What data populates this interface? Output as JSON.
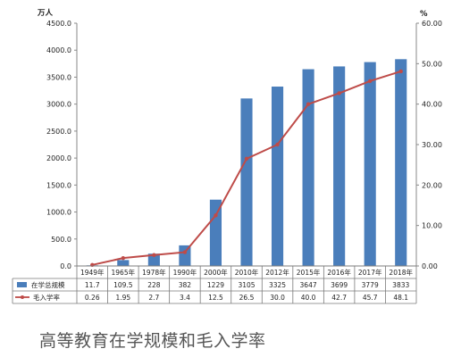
{
  "caption": "高等教育在学规模和毛入学率",
  "chart_data": {
    "type": "bar",
    "categories": [
      "1949年",
      "1965年",
      "1978年",
      "1990年",
      "2000年",
      "2010年",
      "2012年",
      "2015年",
      "2016年",
      "2017年",
      "2018年"
    ],
    "series": [
      {
        "name": "在学总规模",
        "type": "bar",
        "axis": "left",
        "color": "#4a7ebb",
        "values": [
          11.7,
          109.5,
          228,
          382,
          1229,
          3105,
          3325,
          3647,
          3699,
          3779,
          3833
        ],
        "labels": [
          "11.7",
          "109.5",
          "228",
          "382",
          "1229",
          "3105",
          "3325",
          "3647",
          "3699",
          "3779",
          "3833"
        ]
      },
      {
        "name": "毛入学率",
        "type": "line",
        "axis": "right",
        "color": "#be4b48",
        "values": [
          0.26,
          1.95,
          2.7,
          3.4,
          12.5,
          26.5,
          30.0,
          40.0,
          42.7,
          45.7,
          48.1
        ],
        "labels": [
          "0.26",
          "1.95",
          "2.7",
          "3.4",
          "12.5",
          "26.5",
          "30.0",
          "40.0",
          "42.7",
          "45.7",
          "48.1"
        ]
      }
    ],
    "left_axis": {
      "unit": "万人",
      "min": 0,
      "max": 4500,
      "step": 500,
      "tick_labels": [
        "0.0",
        "500.0",
        "1000.0",
        "1500.0",
        "2000.0",
        "2500.0",
        "3000.0",
        "3500.0",
        "4000.0",
        "4500.0"
      ]
    },
    "right_axis": {
      "unit": "%",
      "min": 0,
      "max": 60,
      "step": 10,
      "tick_labels": [
        "0.00",
        "10.00",
        "20.00",
        "30.00",
        "40.00",
        "50.00",
        "60.00"
      ]
    },
    "grid": false,
    "legend": "data-table"
  }
}
